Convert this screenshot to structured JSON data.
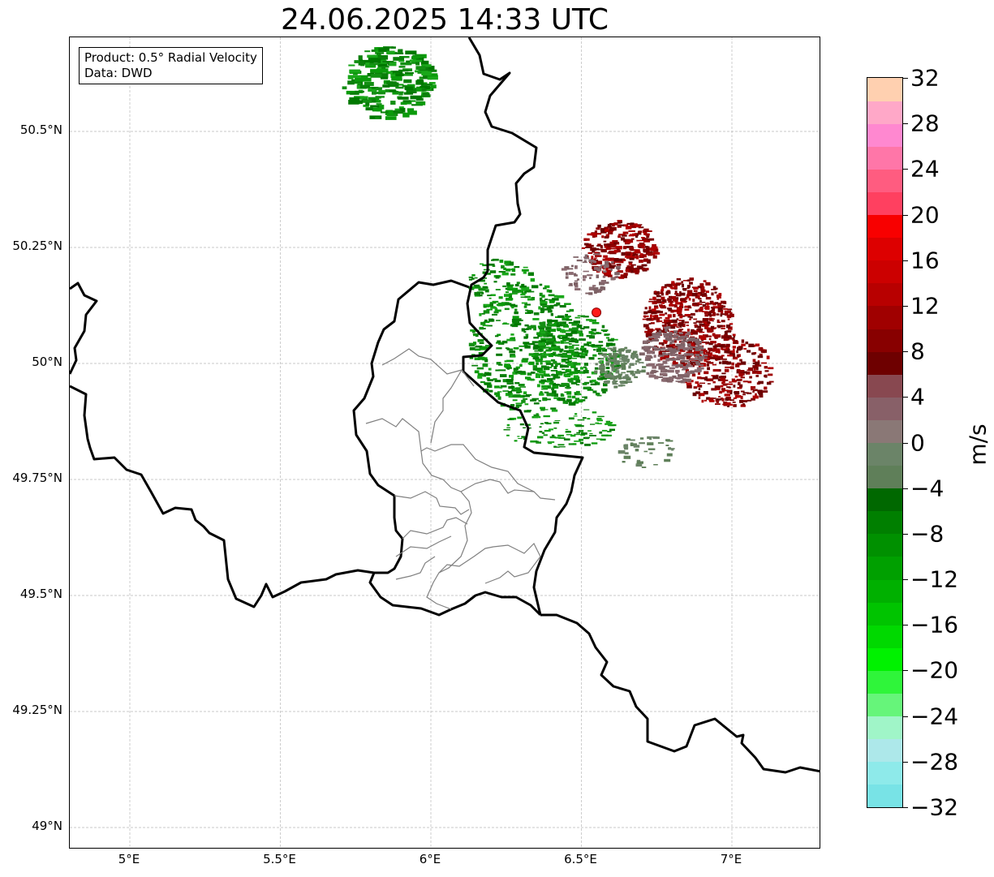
{
  "title": "24.06.2025 14:33 UTC",
  "info_box": {
    "line1": "Product: 0.5° Radial Velocity",
    "line2": "Data: DWD"
  },
  "map": {
    "lon_ticks": [
      {
        "value": 5.0,
        "label": "5°E"
      },
      {
        "value": 5.5,
        "label": "5.5°E"
      },
      {
        "value": 6.0,
        "label": "6°E"
      },
      {
        "value": 6.5,
        "label": "6.5°E"
      },
      {
        "value": 7.0,
        "label": "7°E"
      }
    ],
    "lat_ticks": [
      {
        "value": 50.5,
        "label": "50.5°N"
      },
      {
        "value": 50.25,
        "label": "50.25°N"
      },
      {
        "value": 50.0,
        "label": "50°N"
      },
      {
        "value": 49.75,
        "label": "49.75°N"
      },
      {
        "value": 49.5,
        "label": "49.5°N"
      },
      {
        "value": 49.25,
        "label": "49.25°N"
      },
      {
        "value": 49.0,
        "label": "49°N"
      }
    ],
    "radar_site": {
      "lon": 6.55,
      "lat": 50.11,
      "color": "#ff1a1a"
    }
  },
  "colorbar": {
    "unit": "m/s",
    "min": -32,
    "max": 32,
    "tick_labels": [
      {
        "value": 32,
        "label": "32"
      },
      {
        "value": 28,
        "label": "28"
      },
      {
        "value": 24,
        "label": "24"
      },
      {
        "value": 20,
        "label": "20"
      },
      {
        "value": 16,
        "label": "16"
      },
      {
        "value": 12,
        "label": "12"
      },
      {
        "value": 8,
        "label": "8"
      },
      {
        "value": 4,
        "label": "4"
      },
      {
        "value": 0,
        "label": "0"
      },
      {
        "value": -4,
        "label": "−4"
      },
      {
        "value": -8,
        "label": "−8"
      },
      {
        "value": -12,
        "label": "−12"
      },
      {
        "value": -16,
        "label": "−16"
      },
      {
        "value": -20,
        "label": "−20"
      },
      {
        "value": -24,
        "label": "−24"
      },
      {
        "value": -28,
        "label": "−28"
      },
      {
        "value": -32,
        "label": "−32"
      }
    ],
    "colors": [
      "#78e3e6",
      "#8eeaea",
      "#ade8ea",
      "#a0f5c8",
      "#66f57a",
      "#2ff53a",
      "#00f200",
      "#00d900",
      "#00c400",
      "#00b000",
      "#00a000",
      "#009000",
      "#007f00",
      "#006800",
      "#5f7f59",
      "#6b8468",
      "#8a7876",
      "#886068",
      "#884850",
      "#6e0000",
      "#880000",
      "#a00000",
      "#b80000",
      "#cc0000",
      "#dd0000",
      "#f80000",
      "#ff4060",
      "#ff5c80",
      "#ff76a8",
      "#ff88d0",
      "#ffa8c8",
      "#ffd0b0"
    ]
  },
  "velocity_palette": {
    "inbound": [
      "#0a7f0a",
      "#138f13",
      "#0b9a0b",
      "#1aa71a",
      "#007800"
    ],
    "outbound": [
      "#7a0000",
      "#8f0000",
      "#a00000",
      "#6a0000",
      "#b00000"
    ],
    "weak_in": [
      "#5f7f59",
      "#6b8468"
    ],
    "weak_out": [
      "#7e6266",
      "#8a6a70"
    ]
  }
}
